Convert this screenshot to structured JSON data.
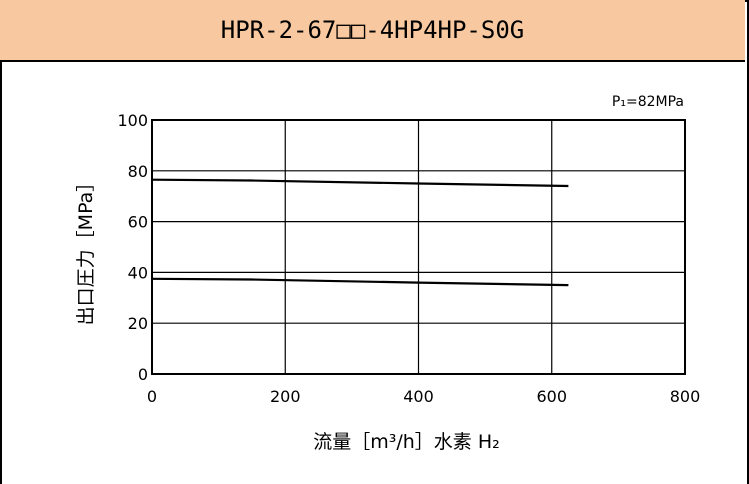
{
  "header": {
    "title": "HPR-2-67□□-4HP4HP-S0G"
  },
  "chart_data": {
    "type": "line",
    "title": "",
    "xlabel": "流量［m³/h］水素 H₂",
    "ylabel": "出口圧力［MPa］",
    "note": "P₁=82MPa",
    "xlim": [
      0,
      800
    ],
    "ylim": [
      0,
      100
    ],
    "x_ticks": [
      "0",
      "200",
      "400",
      "600",
      "800"
    ],
    "y_ticks": [
      "0",
      "20",
      "40",
      "60",
      "80",
      "100"
    ],
    "grid": true,
    "series": [
      {
        "x": [
          0,
          150,
          400,
          625
        ],
        "values": [
          76.5,
          76.2,
          75,
          74
        ]
      },
      {
        "x": [
          0,
          150,
          400,
          625
        ],
        "values": [
          37.5,
          37.2,
          36,
          35
        ]
      }
    ],
    "line_color": "#000000"
  }
}
